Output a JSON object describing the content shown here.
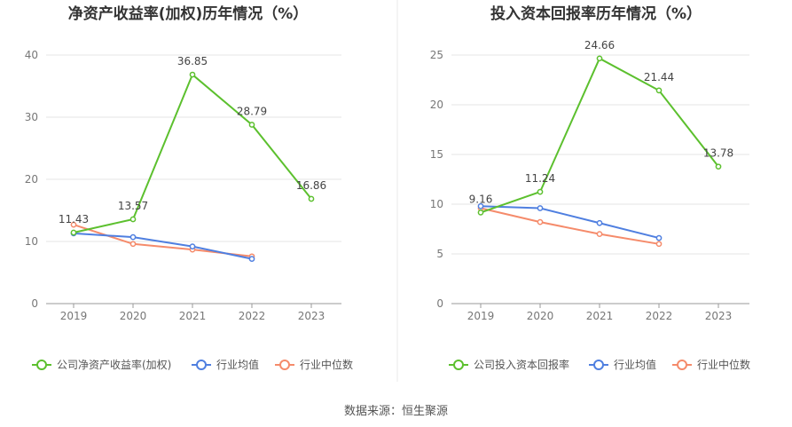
{
  "chart_data": [
    {
      "type": "line",
      "title": "净资产收益率(加权)历年情况（%）",
      "categories": [
        "2019",
        "2020",
        "2021",
        "2022",
        "2023"
      ],
      "ylim": [
        0,
        40
      ],
      "yticks": [
        0,
        10,
        20,
        30,
        40
      ],
      "grid": true,
      "series": [
        {
          "name": "公司净资产收益率(加权)",
          "color": "#5cc02e",
          "values": [
            11.43,
            13.57,
            36.85,
            28.79,
            16.86
          ],
          "labels": [
            "11.43",
            "13.57",
            "36.85",
            "28.79",
            "16.86"
          ]
        },
        {
          "name": "行业均值",
          "color": "#4f7fe0",
          "values": [
            11.3,
            10.7,
            9.2,
            7.2,
            null
          ]
        },
        {
          "name": "行业中位数",
          "color": "#f58b6b",
          "values": [
            12.7,
            9.6,
            8.7,
            7.6,
            null
          ]
        }
      ],
      "legend_position": "bottom"
    },
    {
      "type": "line",
      "title": "投入资本回报率历年情况（%）",
      "categories": [
        "2019",
        "2020",
        "2021",
        "2022",
        "2023"
      ],
      "ylim": [
        0,
        25
      ],
      "yticks": [
        0,
        5,
        10,
        15,
        20,
        25
      ],
      "grid": true,
      "series": [
        {
          "name": "公司投入资本回报率",
          "color": "#5cc02e",
          "values": [
            9.16,
            11.24,
            24.66,
            21.44,
            13.78
          ],
          "labels": [
            "9.16",
            "11.24",
            "24.66",
            "21.44",
            "13.78"
          ]
        },
        {
          "name": "行业均值",
          "color": "#4f7fe0",
          "values": [
            9.8,
            9.6,
            8.1,
            6.6,
            null
          ]
        },
        {
          "name": "行业中位数",
          "color": "#f58b6b",
          "values": [
            9.6,
            8.2,
            7.0,
            6.0,
            null
          ]
        }
      ],
      "legend_position": "bottom"
    }
  ],
  "source": "数据来源：恒生聚源"
}
